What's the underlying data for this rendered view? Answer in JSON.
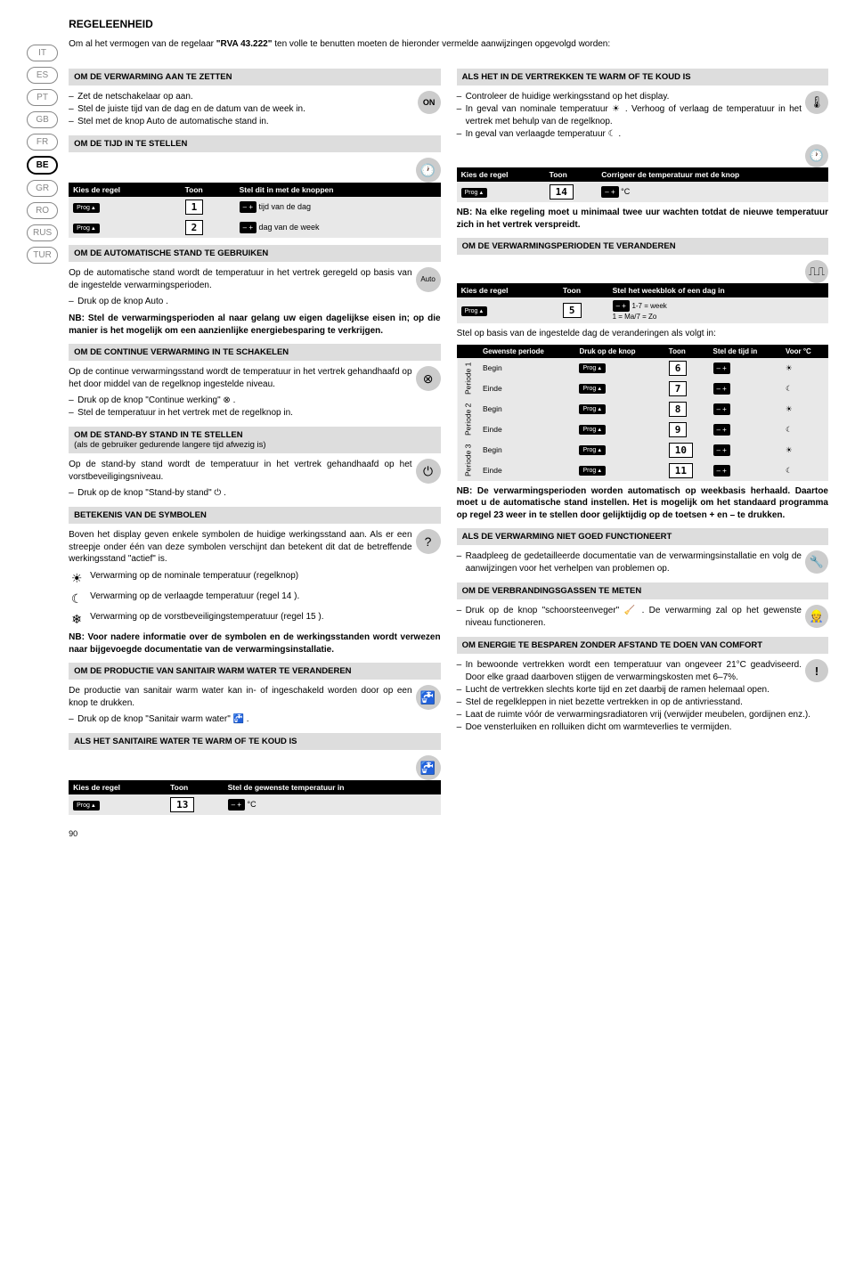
{
  "page_number": "90",
  "languages": [
    "IT",
    "ES",
    "PT",
    "GB",
    "FR",
    "BE",
    "GR",
    "RO",
    "RUS",
    "TUR"
  ],
  "active_lang": "BE",
  "title": "REGELEENHEID",
  "intro_pre": "Om al het vermogen van de regelaar ",
  "intro_bold": "\"RVA 43.222\"",
  "intro_post": " ten volle te benutten moeten de hieronder vermelde aanwijzingen opgevolgd worden:",
  "left": {
    "s1": {
      "hdr": "OM DE VERWARMING AAN TE ZETTEN",
      "items": [
        "Zet de netschakelaar op aan.",
        "Stel de juiste tijd van de dag en de datum van de week in.",
        "Stel met de knop Auto de automatische stand in."
      ],
      "on": "ON"
    },
    "s2": {
      "hdr": "OM DE TIJD IN TE STELLEN",
      "th": [
        "Kies de regel",
        "Toon",
        "Stel dit in met de knoppen"
      ],
      "rows": [
        {
          "n": "1",
          "txt": "tijd van de dag"
        },
        {
          "n": "2",
          "txt": "dag van de week"
        }
      ]
    },
    "s3": {
      "hdr": "OM DE AUTOMATISCHE STAND TE GEBRUIKEN",
      "p": "Op de automatische stand wordt de temperatuur in het vertrek geregeld op basis van de ingestelde verwarmingsperioden.",
      "item": "Druk op de knop Auto .",
      "auto": "Auto",
      "nb": "NB: Stel de verwarmingsperioden al naar gelang uw eigen dagelijkse eisen in; op die manier is het mogelijk om een aanzienlijke energiebesparing te verkrijgen."
    },
    "s4": {
      "hdr": "OM DE CONTINUE VERWARMING IN TE SCHAKELEN",
      "p": "Op de continue verwarmingsstand wordt de temperatuur in het vertrek gehandhaafd op het door middel van de regelknop ingestelde niveau.",
      "items": [
        "Druk op de knop \"Continue werking\" ⊗ .",
        "Stel de temperatuur in het vertrek met de regelknop in."
      ]
    },
    "s5": {
      "hdr": "OM DE STAND-BY STAND IN TE STELLEN",
      "sub": "(als de gebruiker gedurende langere tijd afwezig is)",
      "p": "Op de stand-by stand wordt de temperatuur in het vertrek gehandhaafd op het vorstbeveiligingsniveau.",
      "item": "Druk op de knop \"Stand-by stand\" ⏻ ."
    },
    "s6": {
      "hdr": "BETEKENIS VAN DE SYMBOLEN",
      "p": "Boven het display geven enkele symbolen de huidige werkingsstand aan. Als er een streepje onder één van deze symbolen verschijnt dan betekent dit dat de betreffende werkingsstand \"actief\" is.",
      "syms": [
        {
          "s": "☀",
          "t": "Verwarming op de nominale temperatuur (regelknop)"
        },
        {
          "s": "☾",
          "t": "Verwarming op de verlaagde temperatuur (regel 14 )."
        },
        {
          "s": "❄",
          "t": "Verwarming op de vorstbeveiligingstemperatuur (regel 15 )."
        }
      ],
      "nb": "NB: Voor nadere informatie over de symbolen en de werkingsstanden wordt verwezen naar bijgevoegde documentatie van de verwarmingsinstallatie."
    },
    "s7": {
      "hdr": "OM DE PRODUCTIE VAN SANITAIR WARM WATER TE VERANDEREN",
      "p": "De productie van sanitair warm water kan in- of ingeschakeld worden door op een knop te drukken.",
      "item": "Druk op de knop \"Sanitair warm water\" 🚰 ."
    },
    "s8": {
      "hdr": "ALS HET SANITAIRE WATER TE WARM OF TE KOUD IS",
      "th": [
        "Kies de regel",
        "Toon",
        "Stel de gewenste temperatuur in"
      ],
      "row": {
        "n": "13",
        "unit": "°C"
      }
    }
  },
  "right": {
    "s1": {
      "hdr": "ALS HET IN DE VERTREKKEN TE WARM OF TE KOUD IS",
      "items": [
        "Controleer de huidige werkingsstand op het display.",
        "In geval van nominale temperatuur ☀ . Verhoog of verlaag de temperatuur in het vertrek met behulp van de regelknop.",
        "In geval van verlaagde temperatuur ☾ ."
      ],
      "th": [
        "Kies de regel",
        "Toon",
        "Corrigeer de temperatuur met de knop"
      ],
      "row": {
        "n": "14",
        "unit": "°C"
      },
      "nb": "NB: Na elke regeling moet u minimaal twee uur wachten totdat de nieuwe temperatuur zich in het vertrek verspreidt."
    },
    "s2": {
      "hdr": "OM DE VERWARMINGSPERIODEN TE VERANDEREN",
      "th": [
        "Kies de regel",
        "Toon",
        "Stel het weekblok of een dag in"
      ],
      "row": {
        "n": "5",
        "txt": "1-7 = week\n1 = Ma/7 = Zo"
      },
      "p": "Stel op basis van de ingestelde dag de veranderingen als volgt in:",
      "pth": [
        "Gewenste periode",
        "Druk op de knop",
        "Toon",
        "Stel de tijd in",
        "Voor °C"
      ],
      "periods": [
        {
          "grp": "Periode 1",
          "rows": [
            {
              "lbl": "Begin",
              "n": "6",
              "i": "☀"
            },
            {
              "lbl": "Einde",
              "n": "7",
              "i": "☾"
            }
          ]
        },
        {
          "grp": "Periode 2",
          "rows": [
            {
              "lbl": "Begin",
              "n": "8",
              "i": "☀"
            },
            {
              "lbl": "Einde",
              "n": "9",
              "i": "☾"
            }
          ]
        },
        {
          "grp": "Periode 3",
          "rows": [
            {
              "lbl": "Begin",
              "n": "10",
              "i": "☀"
            },
            {
              "lbl": "Einde",
              "n": "11",
              "i": "☾"
            }
          ]
        }
      ],
      "nb": "NB: De verwarmingsperioden worden automatisch op weekbasis herhaald. Daartoe moet u de automatische stand instellen. Het is mogelijk om het standaard programma op regel 23 weer in te stellen door gelijktijdig op de toetsen + en – te drukken."
    },
    "s3": {
      "hdr": "ALS DE VERWARMING NIET GOED FUNCTIONEERT",
      "item": "Raadpleeg de gedetailleerde documentatie van de verwarmingsinstallatie en volg de aanwijzingen voor het verhelpen van problemen op."
    },
    "s4": {
      "hdr": "OM DE VERBRANDINGSGASSEN TE METEN",
      "item": "Druk op de knop \"schoorsteenveger\" 🧹 . De verwarming zal op het gewenste niveau functioneren."
    },
    "s5": {
      "hdr": "OM ENERGIE TE BESPAREN ZONDER AFSTAND TE DOEN VAN COMFORT",
      "items": [
        "In bewoonde vertrekken wordt een temperatuur van ongeveer 21°C geadviseerd. Door elke graad daarboven stijgen de verwarmingskosten met 6–7%.",
        "Lucht de vertrekken slechts korte tijd en zet daarbij de ramen helemaal open.",
        "Stel de regelkleppen in niet bezette vertrekken in op de antivriesstand.",
        "Laat de ruimte vóór de verwarmingsradiatoren vrij (verwijder meubelen, gordijnen enz.).",
        "Doe vensterluiken en rolluiken dicht om warmteverlies te vermijden."
      ]
    }
  }
}
